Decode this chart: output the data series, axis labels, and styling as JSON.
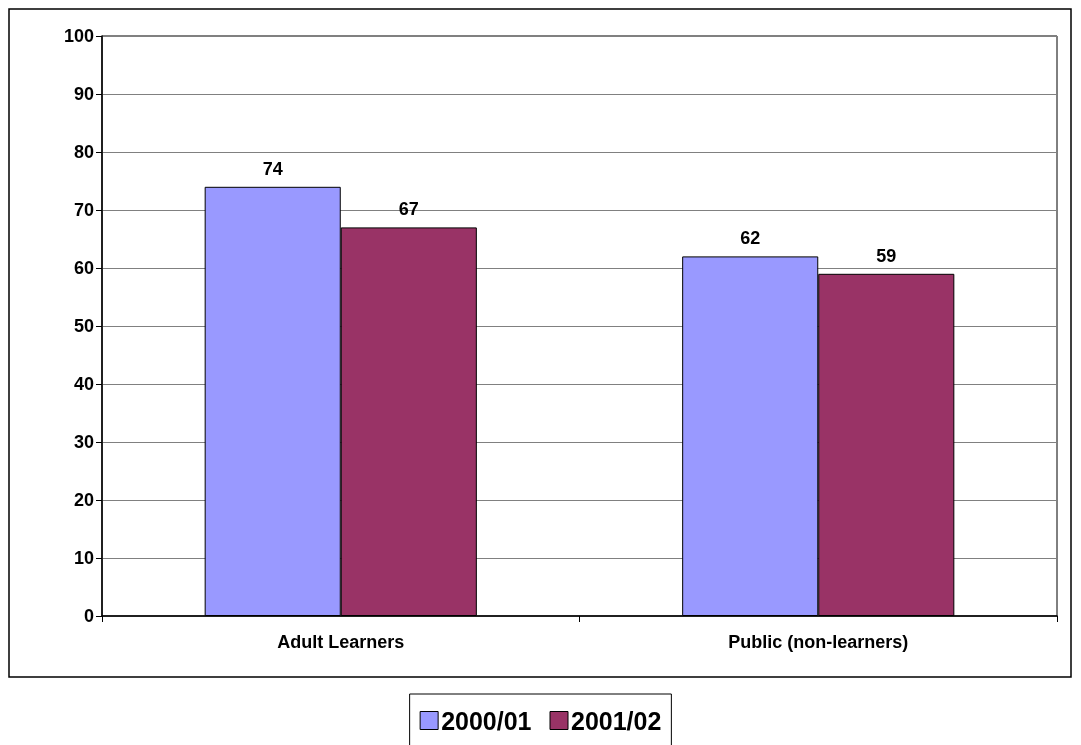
{
  "chart_data": {
    "type": "bar",
    "categories": [
      "Adult Learners",
      "Public (non-learners)"
    ],
    "series": [
      {
        "name": "2000/01",
        "color": "#9999ff",
        "values": [
          74,
          62
        ]
      },
      {
        "name": "2001/02",
        "color": "#993366",
        "values": [
          67,
          59
        ]
      }
    ],
    "ylim": [
      0,
      100
    ],
    "yticks": [
      0,
      10,
      20,
      30,
      40,
      50,
      60,
      70,
      80,
      90,
      100
    ],
    "grid": "y",
    "legend": "bottom",
    "data_labels": true
  }
}
